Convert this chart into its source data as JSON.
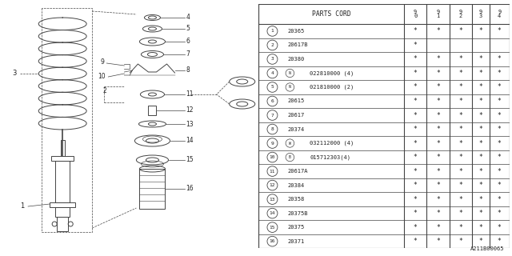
{
  "watermark": "A211B00065",
  "parts": [
    {
      "num": "1",
      "code": "20365",
      "marks": [
        "*",
        "*",
        "*",
        "*",
        "*"
      ],
      "prefix": ""
    },
    {
      "num": "2",
      "code": "20617B",
      "marks": [
        "*",
        "",
        "",
        "",
        ""
      ],
      "prefix": ""
    },
    {
      "num": "3",
      "code": "20380",
      "marks": [
        "*",
        "*",
        "*",
        "*",
        "*"
      ],
      "prefix": ""
    },
    {
      "num": "4",
      "code": "022810000 (4)",
      "marks": [
        "*",
        "*",
        "*",
        "*",
        "*"
      ],
      "prefix": "N"
    },
    {
      "num": "5",
      "code": "021810000 (2)",
      "marks": [
        "*",
        "*",
        "*",
        "*",
        "*"
      ],
      "prefix": "N"
    },
    {
      "num": "6",
      "code": "20615",
      "marks": [
        "*",
        "*",
        "*",
        "*",
        "*"
      ],
      "prefix": ""
    },
    {
      "num": "7",
      "code": "20617",
      "marks": [
        "*",
        "*",
        "*",
        "*",
        "*"
      ],
      "prefix": ""
    },
    {
      "num": "8",
      "code": "20374",
      "marks": [
        "*",
        "*",
        "*",
        "*",
        "*"
      ],
      "prefix": ""
    },
    {
      "num": "9",
      "code": "032112000 (4)",
      "marks": [
        "*",
        "*",
        "*",
        "*",
        "*"
      ],
      "prefix": "W"
    },
    {
      "num": "10",
      "code": "015712303(4)",
      "marks": [
        "*",
        "*",
        "*",
        "*",
        "*"
      ],
      "prefix": "B"
    },
    {
      "num": "11",
      "code": "20617A",
      "marks": [
        "*",
        "*",
        "*",
        "*",
        "*"
      ],
      "prefix": ""
    },
    {
      "num": "12",
      "code": "20384",
      "marks": [
        "*",
        "*",
        "*",
        "*",
        "*"
      ],
      "prefix": ""
    },
    {
      "num": "13",
      "code": "20358",
      "marks": [
        "*",
        "*",
        "*",
        "*",
        "*"
      ],
      "prefix": ""
    },
    {
      "num": "14",
      "code": "20375B",
      "marks": [
        "*",
        "*",
        "*",
        "*",
        "*"
      ],
      "prefix": ""
    },
    {
      "num": "15",
      "code": "20375",
      "marks": [
        "*",
        "*",
        "*",
        "*",
        "*"
      ],
      "prefix": ""
    },
    {
      "num": "16",
      "code": "20371",
      "marks": [
        "*",
        "*",
        "*",
        "*",
        "*"
      ],
      "prefix": ""
    }
  ],
  "bg_color": "#ffffff",
  "line_color": "#444444",
  "text_color": "#222222"
}
